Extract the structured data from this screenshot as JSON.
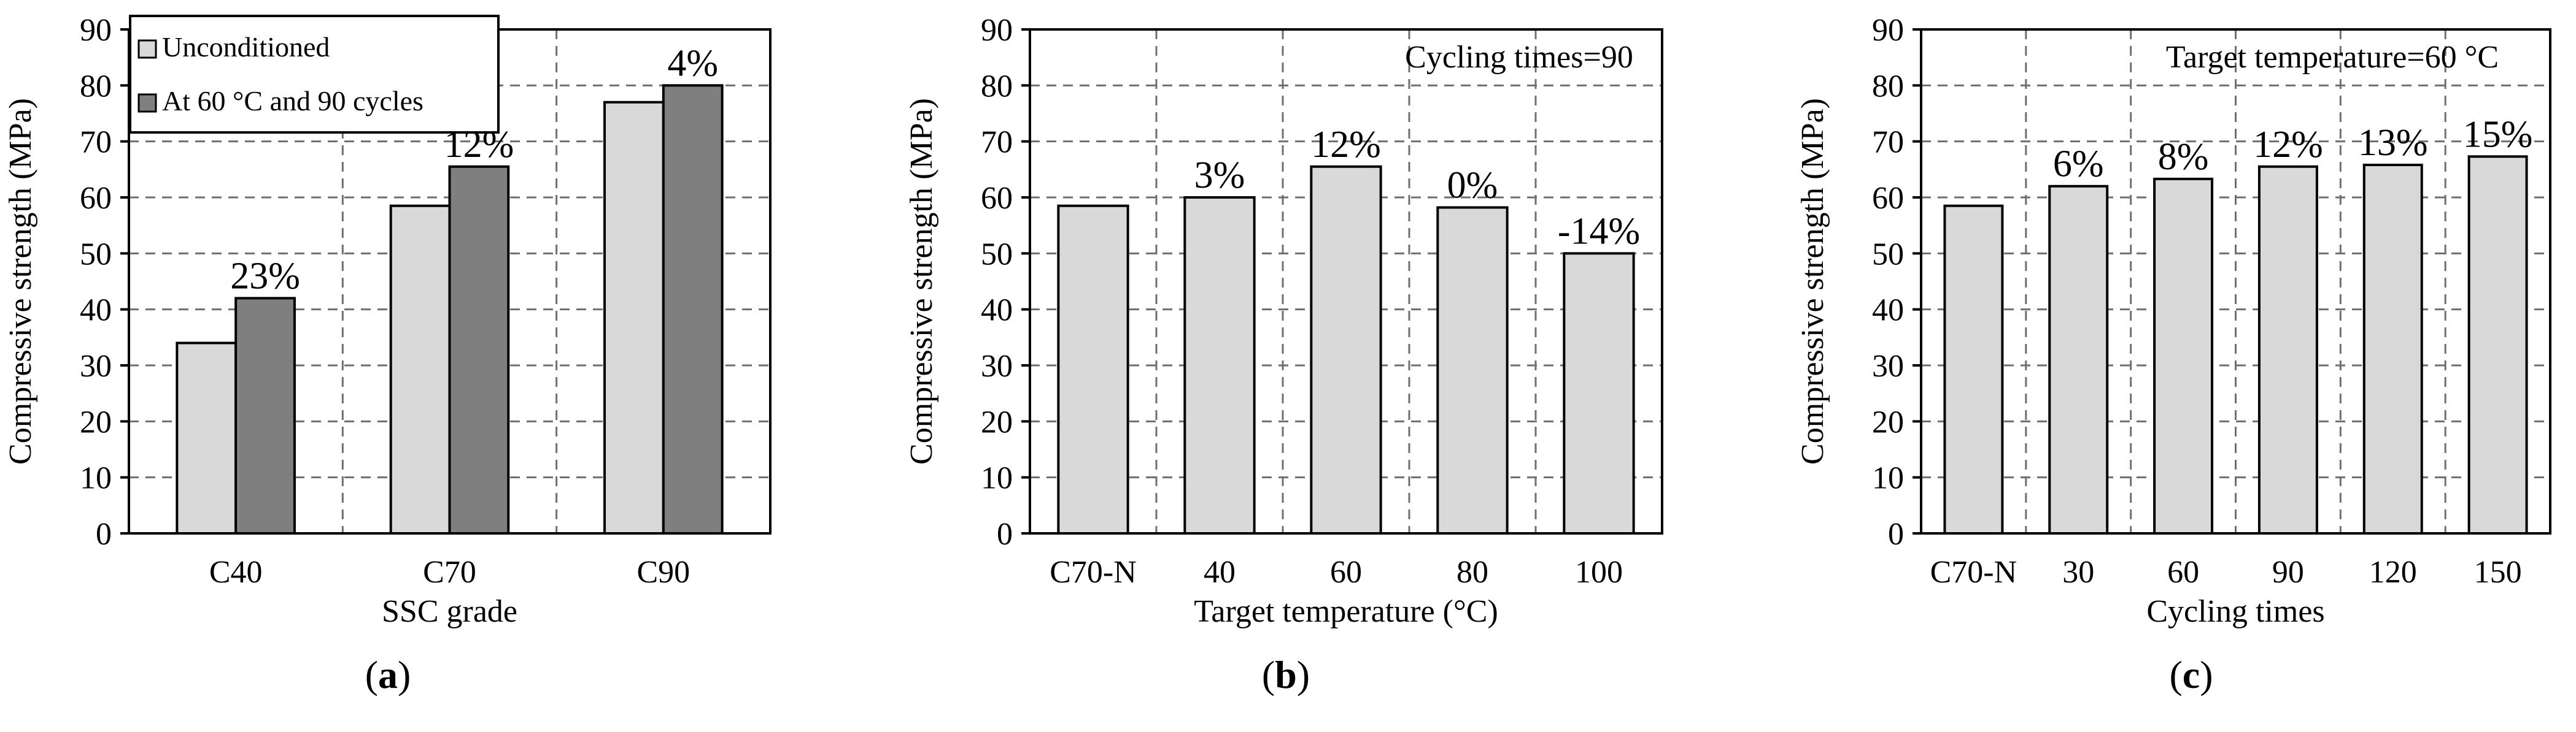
{
  "chart_data": [
    {
      "type": "bar",
      "panel_label": "a",
      "title": "",
      "xlabel": "SSC grade",
      "ylabel": "Compressive strength (MPa)",
      "ylim": [
        0,
        90
      ],
      "yticks": [
        "0",
        "10",
        "20",
        "30",
        "40",
        "50",
        "60",
        "70",
        "80",
        "90"
      ],
      "grid": true,
      "legend_position": "top-left",
      "categories": [
        "C40",
        "C70",
        "C90"
      ],
      "series": [
        {
          "name": "Unconditioned",
          "color": "#d9d9d9",
          "values": [
            34,
            58.5,
            77
          ]
        },
        {
          "name": "At 60 °C and 90 cycles",
          "color": "#7f7f7f",
          "values": [
            42,
            65.5,
            80
          ]
        }
      ],
      "annotations": [
        "23%",
        "12%",
        "4%"
      ],
      "annotation_series": 1
    },
    {
      "type": "bar",
      "panel_label": "b",
      "title": "",
      "note": "Cycling  times=90",
      "xlabel": "Target temperature  (°C)",
      "ylabel": "Compressive  strength (MPa)",
      "ylim": [
        0,
        90
      ],
      "yticks": [
        "0",
        "10",
        "20",
        "30",
        "40",
        "50",
        "60",
        "70",
        "80",
        "90"
      ],
      "grid": true,
      "categories": [
        "C70-N",
        "40",
        "60",
        "80",
        "100"
      ],
      "series": [
        {
          "name": "Compressive strength",
          "color": "#d9d9d9",
          "values": [
            58.5,
            60,
            65.5,
            58.2,
            50
          ]
        }
      ],
      "annotations": [
        "",
        "3%",
        "12%",
        "0%",
        "-14%"
      ],
      "annotation_series": 0
    },
    {
      "type": "bar",
      "panel_label": "c",
      "title": "",
      "note": "Target temperature=60 °C",
      "xlabel": "Cycling times",
      "ylabel": "Compressive strength (MPa)",
      "ylim": [
        0,
        90
      ],
      "yticks": [
        "0",
        "10",
        "20",
        "30",
        "40",
        "50",
        "60",
        "70",
        "80",
        "90"
      ],
      "grid": true,
      "categories": [
        "C70-N",
        "30",
        "60",
        "90",
        "120",
        "150"
      ],
      "series": [
        {
          "name": "Compressive strength",
          "color": "#d9d9d9",
          "values": [
            58.5,
            62,
            63.3,
            65.5,
            65.8,
            67.3
          ]
        }
      ],
      "annotations": [
        "",
        "6%",
        "8%",
        "12%",
        "13%",
        "15%"
      ],
      "annotation_series": 0
    }
  ]
}
